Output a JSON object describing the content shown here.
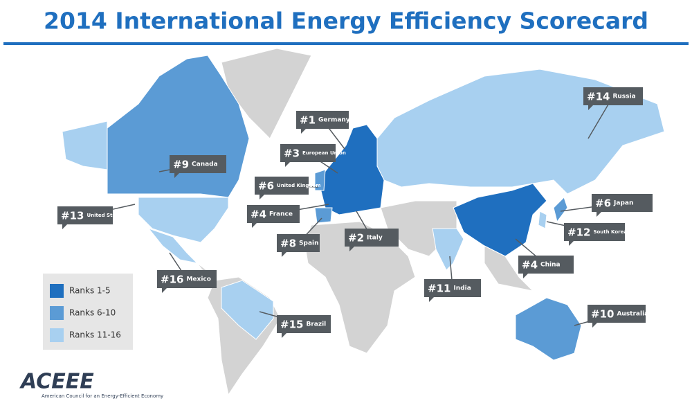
{
  "title": "2014 International Energy Efficiency Scorecard",
  "legend": [
    {
      "label": "Ranks 1-5",
      "color": "#1f6fbf"
    },
    {
      "label": "Ranks 6-10",
      "color": "#5b9bd5"
    },
    {
      "label": "Ranks 11-16",
      "color": "#a8d0f0"
    }
  ],
  "labels": [
    {
      "rank": "#1",
      "country": "Germany"
    },
    {
      "rank": "#3",
      "country": "European Union"
    },
    {
      "rank": "#6",
      "country": "United Kingdom"
    },
    {
      "rank": "#4",
      "country": "France"
    },
    {
      "rank": "#8",
      "country": "Spain"
    },
    {
      "rank": "#2",
      "country": "Italy"
    },
    {
      "rank": "#9",
      "country": "Canada"
    },
    {
      "rank": "#13",
      "country": "United States"
    },
    {
      "rank": "#16",
      "country": "Mexico"
    },
    {
      "rank": "#15",
      "country": "Brazil"
    },
    {
      "rank": "#11",
      "country": "India"
    },
    {
      "rank": "#4",
      "country": "China"
    },
    {
      "rank": "#12",
      "country": "South Korea"
    },
    {
      "rank": "#6",
      "country": "Japan"
    },
    {
      "rank": "#14",
      "country": "Russia"
    },
    {
      "rank": "#10",
      "country": "Australia"
    }
  ],
  "logo": {
    "name": "ACEEE",
    "tagline": "American Council for an Energy-Efficient Economy"
  }
}
